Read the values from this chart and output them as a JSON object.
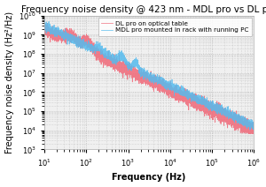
{
  "title": "Frequency noise density @ 423 nm - MDL pro vs DL pro",
  "xlabel": "Frequency (Hz)",
  "ylabel": "Frequency noise density (Hz²/Hz)",
  "xlim": [
    10,
    1000000
  ],
  "ylim": [
    1000.0,
    10000000000.0
  ],
  "legend": [
    "MDL pro mounted in rack with running PC",
    "DL pro on optical table"
  ],
  "mdl_color": "#55bbee",
  "dl_color": "#f06878",
  "bg_color": "#f0f0f0",
  "grid_color": "#bbbbbb",
  "title_fontsize": 7.5,
  "axis_fontsize": 7.0,
  "tick_fontsize": 6.0,
  "legend_fontsize": 5.2
}
